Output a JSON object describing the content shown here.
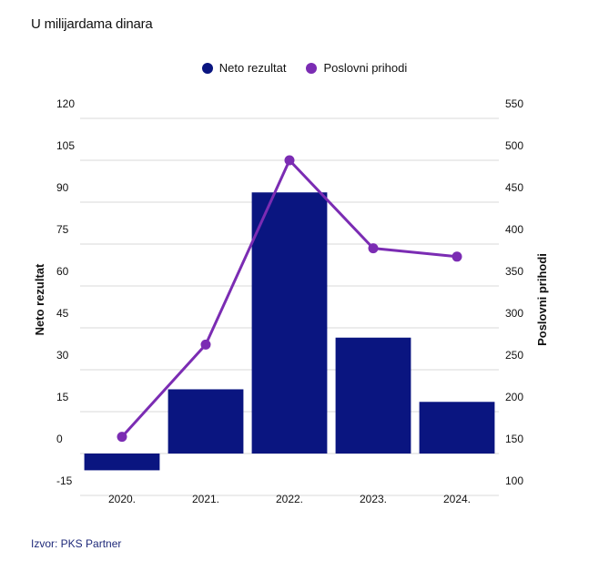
{
  "subtitle": "U milijardama dinara",
  "source": "Izvor: PKS Partner",
  "colors": {
    "bar": "#0a1580",
    "line": "#7b2cb3",
    "grid": "#d9d9d9",
    "text": "#111111"
  },
  "chart_data": {
    "type": "bar",
    "categories": [
      "2020.",
      "2021.",
      "2022.",
      "2023.",
      "2024."
    ],
    "series": [
      {
        "name": "Neto rezultat",
        "type": "bar",
        "axis": "left",
        "values": [
          -6,
          23,
          93.5,
          41.5,
          18.5
        ]
      },
      {
        "name": "Poslovni prihodi",
        "type": "line",
        "axis": "right",
        "values": [
          170,
          280,
          500,
          395,
          385
        ]
      }
    ],
    "ylabel_left": "Neto rezultat",
    "ylabel_right": "Poslovni prihodi",
    "ylim_left": [
      -15,
      120
    ],
    "ylim_right": [
      100,
      550
    ],
    "yticks_left": [
      "120",
      "105",
      "90",
      "75",
      "60",
      "45",
      "30",
      "15",
      "0",
      "-15"
    ],
    "yticks_right": [
      "550",
      "500",
      "450",
      "400",
      "350",
      "300",
      "250",
      "200",
      "150",
      "100"
    ],
    "grid": true,
    "legend_position": "top"
  }
}
